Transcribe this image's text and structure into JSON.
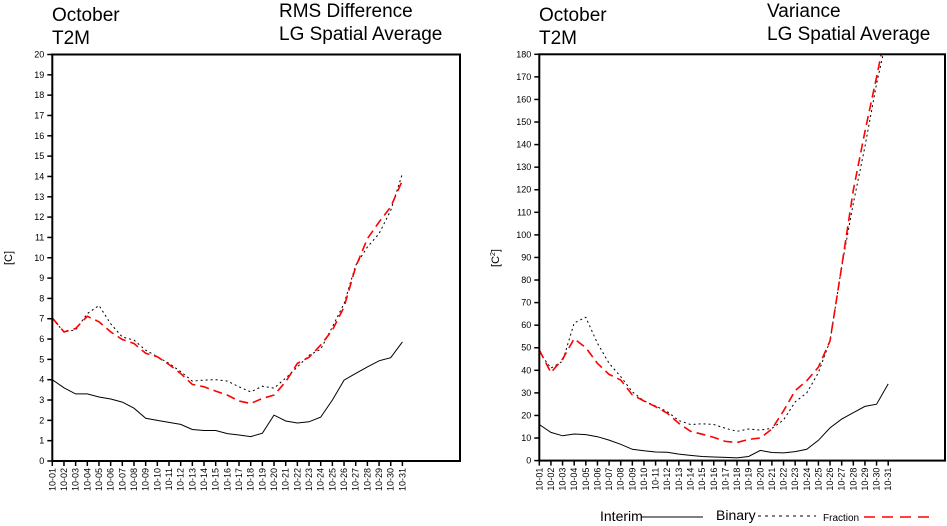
{
  "chart_data": [
    {
      "type": "line",
      "title_left": [
        "October",
        "T2M"
      ],
      "title_right": [
        "RMS Difference",
        "LG Spatial Average"
      ],
      "xlabel": "",
      "ylabel": "[C]",
      "ylabel_superscript": "",
      "ylim": [
        0,
        20
      ],
      "ytick_step": 1,
      "yticks": [
        "0",
        "1",
        "2",
        "3",
        "4",
        "5",
        "6",
        "7",
        "8",
        "9",
        "10",
        "11",
        "12",
        "13",
        "14",
        "15",
        "16",
        "17",
        "18",
        "19",
        "20"
      ],
      "x": [
        "10-01",
        "10-02",
        "10-03",
        "10-04",
        "10-05",
        "10-06",
        "10-07",
        "10-08",
        "10-09",
        "10-10",
        "10-11",
        "10-12",
        "10-13",
        "10-14",
        "10-15",
        "10-16",
        "10-17",
        "10-18",
        "10-19",
        "10-20",
        "10-21",
        "10-22",
        "10-23",
        "10-24",
        "10-25",
        "10-26",
        "10-27",
        "10-28",
        "10-29",
        "10-30",
        "10-31"
      ],
      "grid": false,
      "series": [
        {
          "name": "Interim",
          "style": "solid",
          "color": "#000000",
          "values": [
            4.0,
            3.6,
            3.3,
            3.3,
            3.15,
            3.05,
            2.9,
            2.6,
            2.1,
            2.0,
            1.9,
            1.8,
            1.55,
            1.5,
            1.5,
            1.35,
            1.28,
            1.2,
            1.37,
            2.26,
            1.97,
            1.87,
            1.93,
            2.16,
            3.0,
            3.98,
            4.31,
            4.63,
            4.93,
            5.08,
            5.86
          ]
        },
        {
          "name": "Binary",
          "style": "dotted",
          "color": "#000000",
          "values": [
            7.0,
            6.35,
            6.45,
            7.25,
            7.65,
            6.75,
            6.1,
            5.95,
            5.45,
            5.13,
            4.8,
            4.4,
            3.93,
            3.98,
            4.0,
            3.93,
            3.65,
            3.4,
            3.68,
            3.58,
            4.08,
            4.63,
            5.2,
            5.5,
            6.6,
            7.75,
            9.63,
            10.53,
            11.19,
            12.33,
            14.14
          ]
        },
        {
          "name": "Fraction",
          "style": "dashed",
          "color": "#ff0000",
          "values": [
            7.04,
            6.35,
            6.52,
            7.12,
            6.85,
            6.35,
            5.98,
            5.78,
            5.3,
            5.13,
            4.75,
            4.3,
            3.77,
            3.65,
            3.44,
            3.24,
            2.95,
            2.83,
            3.08,
            3.24,
            3.9,
            4.8,
            5.1,
            5.7,
            6.44,
            7.58,
            9.55,
            10.94,
            11.76,
            12.5,
            13.8
          ]
        }
      ]
    },
    {
      "type": "line",
      "title_left": [
        "October",
        "T2M"
      ],
      "title_right": [
        "Variance",
        "LG Spatial Average"
      ],
      "xlabel": "",
      "ylabel": "[C",
      "ylabel_superscript": "2",
      "ylabel_suffix": "]",
      "ylim": [
        0,
        180
      ],
      "ytick_step": 10,
      "yticks": [
        "0",
        "10",
        "20",
        "30",
        "40",
        "50",
        "60",
        "70",
        "80",
        "90",
        "100",
        "110",
        "120",
        "130",
        "140",
        "150",
        "160",
        "170",
        "180"
      ],
      "x": [
        "10-01",
        "10-02",
        "10-03",
        "10-04",
        "10-05",
        "10-06",
        "10-07",
        "10-08",
        "10-09",
        "10-10",
        "10-11",
        "10-12",
        "10-13",
        "10-14",
        "10-15",
        "10-16",
        "10-17",
        "10-18",
        "10-19",
        "10-20",
        "10-21",
        "10-22",
        "10-23",
        "10-24",
        "10-25",
        "10-26",
        "10-27",
        "10-28",
        "10-29",
        "10-30",
        "10-31"
      ],
      "grid": false,
      "series": [
        {
          "name": "Interim",
          "style": "solid",
          "color": "#000000",
          "values": [
            16,
            12.5,
            11,
            11.8,
            11.5,
            10.6,
            9.1,
            7.2,
            5.0,
            4.4,
            3.8,
            3.7,
            2.9,
            2.3,
            1.8,
            1.6,
            1.4,
            1.2,
            1.8,
            4.5,
            3.6,
            3.4,
            4.0,
            5.0,
            9.0,
            14.5,
            18.4,
            21.2,
            24,
            25,
            34
          ]
        },
        {
          "name": "Binary",
          "style": "dotted",
          "color": "#000000",
          "values": [
            48,
            41,
            44,
            61,
            63.5,
            52,
            43.1,
            37.2,
            30.5,
            26.4,
            24.2,
            21.7,
            17.7,
            16,
            16.3,
            16,
            14.3,
            13,
            14,
            13.5,
            14.3,
            18,
            26,
            30,
            39,
            53,
            86,
            114,
            139,
            167,
            190
          ]
        },
        {
          "name": "Fraction",
          "style": "dashed",
          "color": "#ff0000",
          "values": [
            49,
            39,
            45,
            54,
            50,
            43.1,
            38.2,
            35.7,
            29.1,
            26.4,
            23.9,
            21,
            16.5,
            13,
            11.7,
            10.3,
            8.5,
            8,
            9.4,
            10,
            14,
            22,
            31,
            35.4,
            41.4,
            53,
            86,
            119.8,
            145.7,
            170,
            195
          ]
        }
      ]
    }
  ],
  "legend": {
    "position": "bottom-right",
    "items": [
      {
        "label": "Interim",
        "style": "solid",
        "color": "#000000",
        "size": "big"
      },
      {
        "label": "Binary",
        "style": "dotted",
        "color": "#000000",
        "size": "big"
      },
      {
        "label": "Fraction",
        "style": "dashed",
        "color": "#ff0000",
        "size": "small"
      }
    ]
  }
}
